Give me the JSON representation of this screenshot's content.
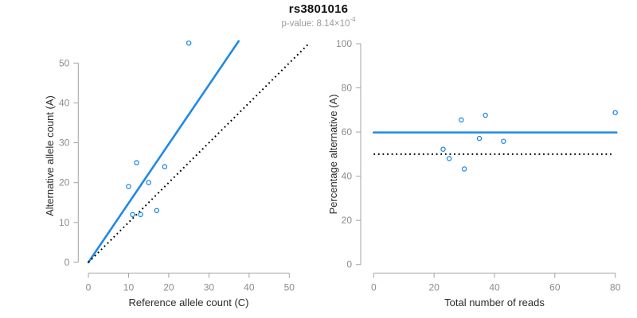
{
  "header": {
    "title": "rs3801016",
    "pvalue_prefix": "p-value: 8.14×10",
    "pvalue_exponent": "-4"
  },
  "colors": {
    "accent_blue": "#2089E8",
    "dotted_black": "#000000",
    "axis_line": "#a3a3a3",
    "tick_text": "#8c8c8c",
    "axis_title_text": "#2b2b2b"
  },
  "chart_data": [
    {
      "type": "scatter",
      "panel": "left",
      "xlabel": "Reference allele count (C)",
      "ylabel": "Alternative allele count (A)",
      "xlim": [
        0,
        50
      ],
      "ylim": [
        0,
        50
      ],
      "xticks": [
        0,
        10,
        20,
        30,
        40,
        50
      ],
      "yticks": [
        0,
        10,
        20,
        30,
        40,
        50
      ],
      "grid": false,
      "legend": null,
      "points": [
        [
          10,
          19
        ],
        [
          11,
          12
        ],
        [
          12,
          25
        ],
        [
          13,
          12
        ],
        [
          15,
          20
        ],
        [
          17,
          13
        ],
        [
          19,
          24
        ],
        [
          25,
          55
        ]
      ],
      "lines": [
        {
          "name": "fitted-line",
          "dash": "solid",
          "color_key": "accent_blue",
          "from": [
            0,
            0
          ],
          "to": [
            37.4,
            55.5
          ]
        },
        {
          "name": "identity-line",
          "dash": "dotted",
          "color_key": "dotted_black",
          "from": [
            0,
            0
          ],
          "to": [
            54.9,
            54.9
          ]
        }
      ]
    },
    {
      "type": "scatter",
      "panel": "right",
      "xlabel": "Total number of reads",
      "ylabel": "Percentage alternative (A)",
      "xlim": [
        0,
        80
      ],
      "ylim": [
        0,
        100
      ],
      "xticks": [
        0,
        20,
        40,
        60,
        80
      ],
      "yticks": [
        0,
        20,
        40,
        60,
        80,
        100
      ],
      "grid": false,
      "legend": null,
      "points": [
        [
          23,
          52.2
        ],
        [
          25,
          48
        ],
        [
          29,
          65.5
        ],
        [
          30,
          43.3
        ],
        [
          35,
          57.1
        ],
        [
          37,
          67.6
        ],
        [
          43,
          55.8
        ],
        [
          80,
          68.8
        ]
      ],
      "lines": [
        {
          "name": "fitted-line",
          "dash": "solid",
          "color_key": "accent_blue",
          "from": [
            0,
            59.8
          ],
          "to": [
            80.4,
            59.8
          ]
        },
        {
          "name": "null-line",
          "dash": "dotted",
          "color_key": "dotted_black",
          "from": [
            0,
            50
          ],
          "to": [
            79.6,
            50
          ]
        }
      ]
    }
  ]
}
